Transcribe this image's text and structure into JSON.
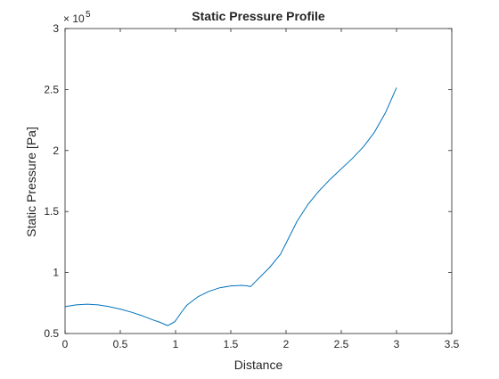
{
  "chart_data": {
    "type": "line",
    "title": "Static Pressure Profile",
    "xlabel": "Distance",
    "ylabel": "Static Pressure [Pa]",
    "xlim": [
      0,
      3.5
    ],
    "ylim": [
      50000,
      300000
    ],
    "xticks": [
      0,
      0.5,
      1,
      1.5,
      2,
      2.5,
      3,
      3.5
    ],
    "xtick_labels": [
      "0",
      "0.5",
      "1",
      "1.5",
      "2",
      "2.5",
      "3",
      "3.5"
    ],
    "yticks": [
      50000,
      100000,
      150000,
      200000,
      250000,
      300000
    ],
    "ytick_labels": [
      "0.5",
      "1",
      "1.5",
      "2",
      "2.5",
      "3"
    ],
    "y_exponent_base": "× 10",
    "y_exponent_power": "5",
    "grid": false,
    "box": true,
    "series": [
      {
        "color": "#0072bd",
        "x": [
          0,
          0.1,
          0.2,
          0.3,
          0.4,
          0.5,
          0.6,
          0.7,
          0.8,
          0.85,
          0.93,
          0.99,
          1.0,
          1.05,
          1.1,
          1.2,
          1.3,
          1.4,
          1.5,
          1.6,
          1.65,
          1.68,
          1.75,
          1.85,
          1.95,
          2.0,
          2.1,
          2.2,
          2.3,
          2.4,
          2.5,
          2.6,
          2.7,
          2.8,
          2.9,
          3.0
        ],
        "y": [
          72000,
          73500,
          74000,
          73500,
          72000,
          70000,
          67500,
          64500,
          61000,
          59500,
          56500,
          59500,
          60500,
          67000,
          73000,
          80000,
          84500,
          87500,
          89000,
          89500,
          89000,
          88500,
          95000,
          104000,
          115000,
          124000,
          142000,
          156000,
          167000,
          176500,
          185000,
          193500,
          203000,
          215000,
          231000,
          251500
        ]
      }
    ]
  }
}
